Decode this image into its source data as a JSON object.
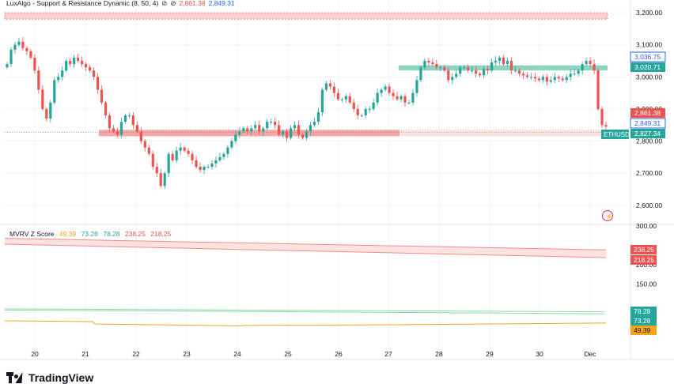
{
  "indicator_top": {
    "name": "LuxAlgo - Support & Resistance Dynamic (8, 50, 4)",
    "v1": "2,861.38",
    "v2": "2,849.31"
  },
  "indicator_bottom": {
    "name": "MVRV Z Score",
    "values": [
      "49.39",
      "73.28",
      "78.28",
      "238.25",
      "218.25"
    ]
  },
  "brand": "TradingView",
  "colors": {
    "up": "#26a69a",
    "down": "#ef5350",
    "resistance": "#f7a5a5",
    "support": "#7cc8b8",
    "orange": "#f7a21b",
    "green_line": "#8fd9a8",
    "blue_tag": "#2962ff",
    "grid": "#f0f3fa",
    "text": "#131722"
  },
  "chart_data": [
    {
      "type": "candlestick",
      "symbol": "ETHUSD",
      "ylim": [
        2560,
        3220
      ],
      "y_ticks": [
        "3,200.00",
        "3,100.00",
        "3,000.00",
        "2,900.00",
        "2,800.00",
        "2,700.00",
        "2,600.00"
      ],
      "y_tick_values": [
        3200,
        3100,
        3000,
        2900,
        2800,
        2700,
        2600
      ],
      "x_ticks": [
        "20",
        "21",
        "22",
        "23",
        "24",
        "25",
        "26",
        "27",
        "28",
        "29",
        "30",
        "Dec"
      ],
      "resistance_zone": {
        "low": 3180,
        "high": 3200
      },
      "support_zone_right": {
        "low": 3020,
        "high": 3036
      },
      "support_zone_left": {
        "low": 2815,
        "high": 2835
      },
      "price_labels": [
        {
          "text": "3,036.75",
          "value": 3036.75,
          "style": "blue"
        },
        {
          "text": "3,020.71",
          "value": 3020.71,
          "style": "green"
        },
        {
          "text": "2,861.38",
          "value": 2861.38,
          "style": "red"
        },
        {
          "text": "2,849.31",
          "value": 2849.31,
          "style": "blue"
        },
        {
          "text": "2,827.34",
          "value": 2827.34,
          "style": "green"
        }
      ],
      "closes": [
        3040,
        3085,
        3100,
        3110,
        3090,
        3080,
        3060,
        3020,
        2960,
        2900,
        2870,
        2920,
        2990,
        3000,
        3020,
        3050,
        3040,
        3060,
        3050,
        3040,
        3030,
        3020,
        3000,
        2960,
        2920,
        2880,
        2840,
        2830,
        2820,
        2860,
        2880,
        2880,
        2850,
        2830,
        2800,
        2780,
        2760,
        2720,
        2700,
        2660,
        2700,
        2760,
        2740,
        2770,
        2780,
        2770,
        2760,
        2740,
        2720,
        2710,
        2720,
        2720,
        2730,
        2740,
        2750,
        2760,
        2780,
        2800,
        2820,
        2830,
        2840,
        2830,
        2840,
        2850,
        2830,
        2840,
        2860,
        2860,
        2850,
        2820,
        2830,
        2810,
        2840,
        2850,
        2820,
        2810,
        2830,
        2850,
        2860,
        2890,
        2960,
        2980,
        2970,
        2950,
        2930,
        2930,
        2940,
        2920,
        2900,
        2880,
        2880,
        2900,
        2900,
        2920,
        2950,
        2960,
        2970,
        2950,
        2940,
        2930,
        2940,
        2920,
        2920,
        2950,
        2990,
        3030,
        3050,
        3045,
        3040,
        3030,
        3030,
        3020,
        2990,
        3000,
        3010,
        3030,
        3030,
        3020,
        3020,
        3010,
        3005,
        3025,
        3020,
        3045,
        3050,
        3060,
        3040,
        3050,
        3020,
        3020,
        3010,
        3005,
        3000,
        3000,
        2995,
        2990,
        3000,
        2985,
        2990,
        3000,
        2995,
        2990,
        3000,
        3010,
        3010,
        3020,
        3040,
        3050,
        3040,
        3020,
        2900,
        2850,
        2845
      ]
    },
    {
      "type": "line",
      "title": "MVRV Z Score",
      "ylim": [
        0,
        300
      ],
      "y_ticks": [
        "300.00",
        "200.00",
        "150.00"
      ],
      "y_tick_values": [
        300,
        200,
        150
      ],
      "series": [
        {
          "value_start": 268,
          "value_end": 238.25,
          "label": "238.25"
        },
        {
          "value_start": 253,
          "value_end": 218.25,
          "label": "218.25"
        },
        {
          "value_start": 86,
          "value_end": 78.28,
          "label": "78.28"
        },
        {
          "value_start": 83,
          "value_end": 73.28,
          "label": "73.28"
        },
        {
          "value_start": 55,
          "value_end": 49.39,
          "label": "49.39"
        }
      ]
    }
  ]
}
